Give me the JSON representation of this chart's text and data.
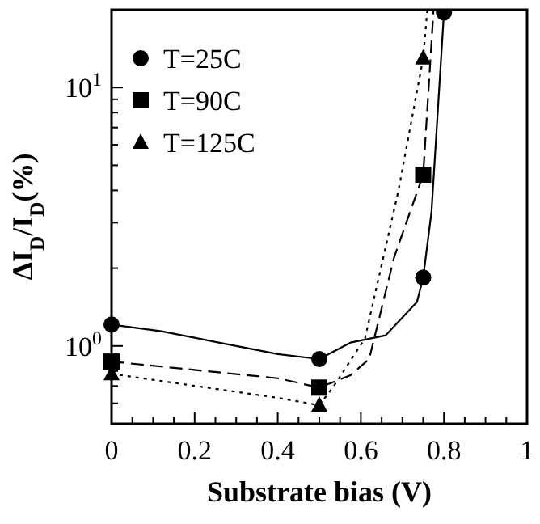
{
  "chart_data": {
    "type": "line",
    "xlabel": "Substrate bias (V)",
    "ylabel": "ΔI$_{D}$/I$_{D}$(%)",
    "log": "y",
    "xlim": [
      0,
      1
    ],
    "ylim": [
      0.5,
      20
    ],
    "xticks": [
      0,
      {
        "value": 0.05,
        "label": null
      },
      0.2,
      {
        "value": 0.15,
        "label": null
      },
      {
        "value": 0.1,
        "label": null
      },
      {
        "value": 0.25,
        "label": null
      },
      {
        "value": 0.3,
        "label": null
      },
      {
        "value": 0.35,
        "label": null
      },
      0.4,
      {
        "value": 0.45,
        "label": null
      },
      {
        "value": 0.5,
        "label": null
      },
      {
        "value": 0.55,
        "label": null
      },
      0.6,
      {
        "value": 0.65,
        "label": null
      },
      {
        "value": 0.7,
        "label": null
      },
      {
        "value": 0.75,
        "label": null
      },
      0.8,
      {
        "value": 0.85,
        "label": null
      },
      {
        "value": 0.9,
        "label": null
      },
      {
        "value": 0.95,
        "label": null
      },
      1
    ],
    "yticks": [
      {
        "value": 0.5,
        "label": null
      },
      {
        "value": 0.6,
        "label": null
      },
      {
        "value": 0.7,
        "label": null
      },
      {
        "value": 0.8,
        "label": null
      },
      {
        "value": 0.9,
        "label": null
      },
      {
        "value": 1,
        "label": "10$^{0}$"
      },
      {
        "value": 2,
        "label": null
      },
      {
        "value": 3,
        "label": null
      },
      {
        "value": 4,
        "label": null
      },
      {
        "value": 5,
        "label": null
      },
      {
        "value": 6,
        "label": null
      },
      {
        "value": 7,
        "label": null
      },
      {
        "value": 8,
        "label": null
      },
      {
        "value": 9,
        "label": null
      },
      {
        "value": 10,
        "label": "10$^{1}$"
      },
      {
        "value": 20,
        "label": null
      }
    ],
    "legend": "top left",
    "grid": false,
    "series": [
      {
        "type": "line",
        "line_style": "solid",
        "marker": "none",
        "color": "#000000",
        "x": [
          0,
          0.12,
          0.4,
          0.5,
          0.575,
          0.66,
          0.735,
          0.75,
          0.77,
          0.8
        ],
        "values": [
          1.21,
          1.14,
          0.93,
          0.89,
          1.03,
          1.1,
          1.48,
          1.84,
          3.3,
          19.5
        ]
      },
      {
        "type": "line",
        "line_style": "dashed",
        "marker": "none",
        "color": "#000000",
        "x": [
          0,
          0.4,
          0.5,
          0.575,
          0.62,
          0.68,
          0.75,
          0.775
        ],
        "values": [
          0.87,
          0.75,
          0.69,
          0.77,
          0.89,
          2.2,
          4.6,
          20
        ]
      },
      {
        "type": "line",
        "line_style": "dotted",
        "marker": "none",
        "color": "#000000",
        "x": [
          0,
          0.4,
          0.5,
          0.535,
          0.61,
          0.69,
          0.75,
          0.76
        ],
        "values": [
          0.78,
          0.63,
          0.59,
          0.7,
          1.07,
          3.96,
          13,
          20
        ]
      },
      {
        "type": "scatter",
        "name": "T=25C",
        "marker": "circle",
        "color": "#000000",
        "x": [
          0,
          0.5,
          0.75,
          0.8
        ],
        "values": [
          1.21,
          0.89,
          1.84,
          19.5
        ]
      },
      {
        "type": "scatter",
        "name": "T=90C",
        "marker": "square",
        "color": "#000000",
        "x": [
          0,
          0.5,
          0.75
        ],
        "values": [
          0.87,
          0.69,
          4.6
        ]
      },
      {
        "type": "scatter",
        "name": "T=125C",
        "marker": "triangle",
        "color": "#000000",
        "x": [
          0,
          0.5,
          0.75
        ],
        "values": [
          0.78,
          0.59,
          13
        ]
      }
    ]
  }
}
